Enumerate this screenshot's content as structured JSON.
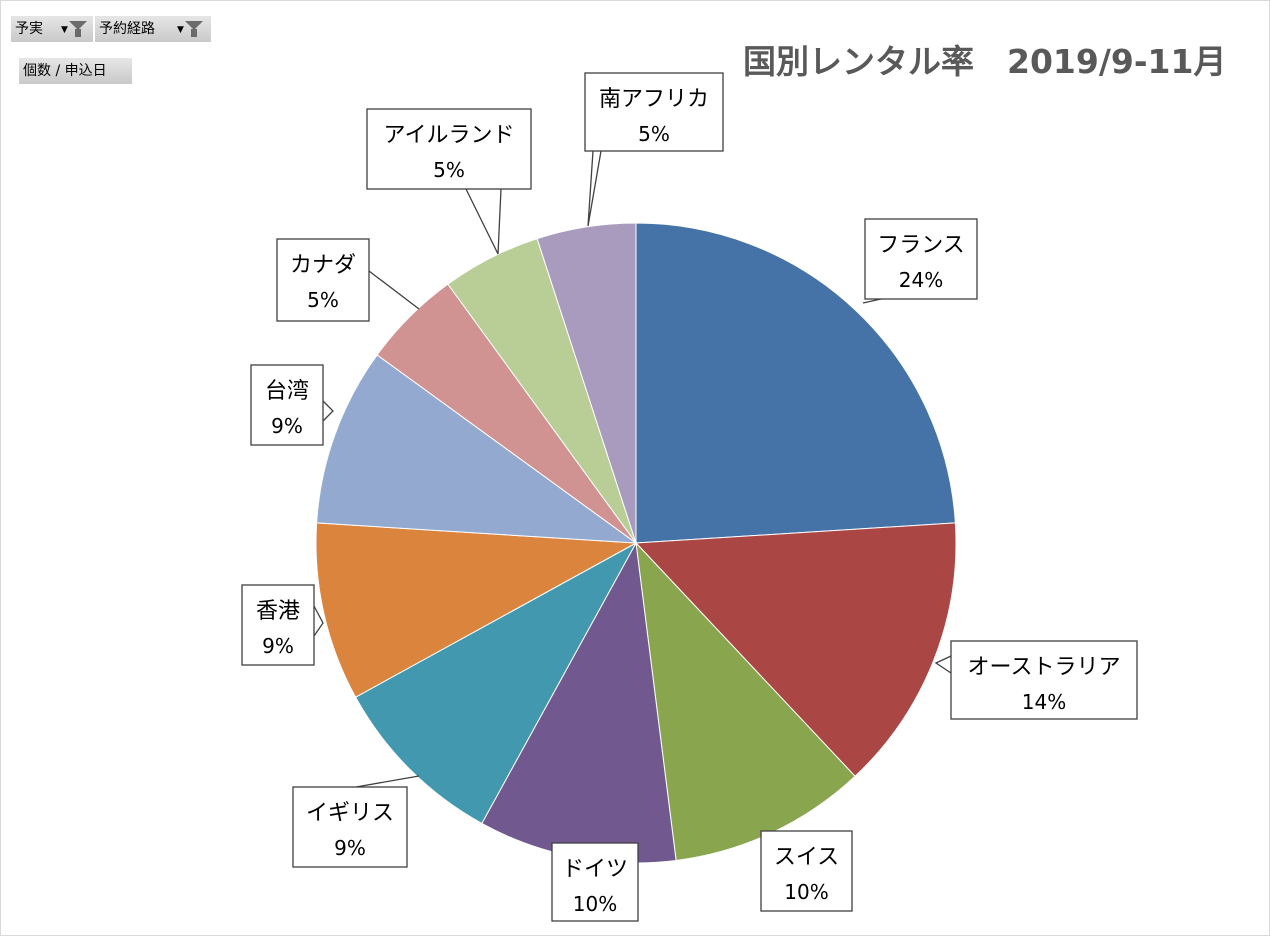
{
  "pivot_buttons": {
    "filter1": "予実",
    "filter2": "予約経路",
    "values_field": "個数 / 申込日"
  },
  "chart_data": {
    "type": "pie",
    "title": "国別レンタル率　2019/9-11月",
    "categories": [
      "フランス",
      "オーストラリア",
      "スイス",
      "ドイツ",
      "イギリス",
      "香港",
      "台湾",
      "カナダ",
      "アイルランド",
      "南アフリカ"
    ],
    "values": [
      24,
      14,
      10,
      10,
      9,
      9,
      9,
      5,
      5,
      5
    ],
    "value_labels": [
      "24%",
      "14%",
      "10%",
      "10%",
      "9%",
      "9%",
      "9%",
      "5%",
      "5%",
      "5%"
    ],
    "colors": [
      "#4573A7",
      "#AA4643",
      "#89A54E",
      "#71588F",
      "#4198AF",
      "#DB843D",
      "#93A9CF",
      "#D19392",
      "#B9CD96",
      "#A99BBD"
    ],
    "start_angle_deg": 0,
    "direction": "clockwise",
    "data_labels": "callout",
    "legend": "none"
  }
}
